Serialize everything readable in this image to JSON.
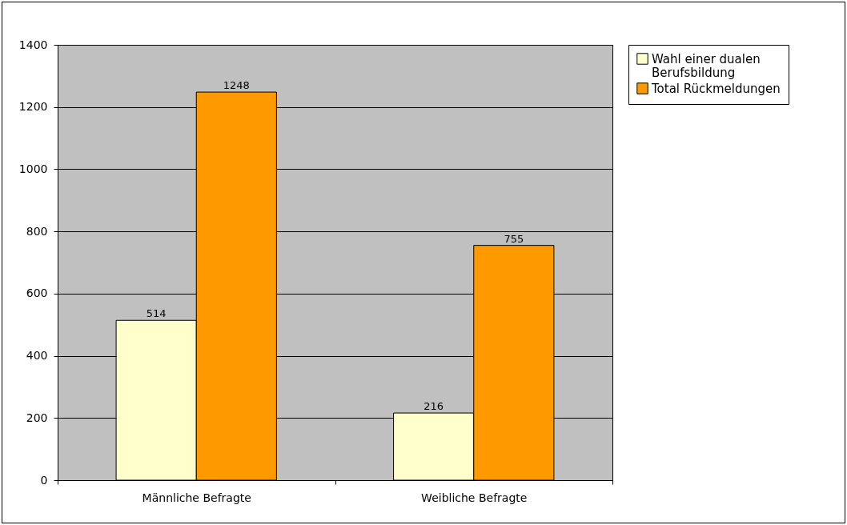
{
  "chart_data": {
    "type": "bar",
    "categories": [
      "Männliche Befragte",
      "Weibliche Befragte"
    ],
    "series": [
      {
        "name": "Wahl einer dualen Berufsbildung",
        "color": "#ffffcc",
        "values": [
          514,
          216
        ]
      },
      {
        "name": "Total Rückmeldungen",
        "color": "#ff9900",
        "values": [
          1248,
          755
        ]
      }
    ],
    "ylim": [
      0,
      1400
    ],
    "yticks": [
      0,
      200,
      400,
      600,
      800,
      1000,
      1200,
      1400
    ],
    "grid": "y",
    "legend": "right",
    "data_labels": true
  }
}
